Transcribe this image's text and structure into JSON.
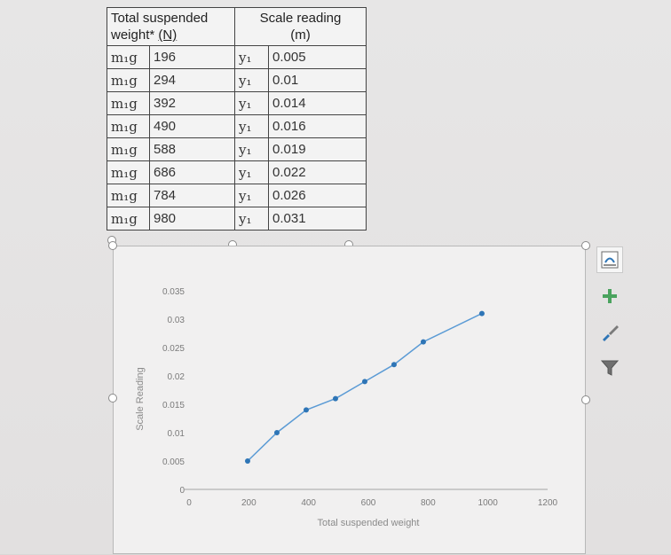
{
  "table": {
    "header_weight_line1": "Total suspended",
    "header_weight_line2": "weight*",
    "header_weight_unit": "(N)",
    "header_scale_line1": "Scale reading",
    "header_scale_unit": "(m)",
    "rows": [
      {
        "sym": "m₁g",
        "weight": "196",
        "ysym": "y₁",
        "reading": "0.005"
      },
      {
        "sym": "m₁g",
        "weight": "294",
        "ysym": "y₁",
        "reading": "0.01"
      },
      {
        "sym": "m₁g",
        "weight": "392",
        "ysym": "y₁",
        "reading": "0.014"
      },
      {
        "sym": "m₁g",
        "weight": "490",
        "ysym": "y₁",
        "reading": "0.016"
      },
      {
        "sym": "m₁g",
        "weight": "588",
        "ysym": "y₁",
        "reading": "0.019"
      },
      {
        "sym": "m₁g",
        "weight": "686",
        "ysym": "y₁",
        "reading": "0.022"
      },
      {
        "sym": "m₁g",
        "weight": "784",
        "ysym": "y₁",
        "reading": "0.026"
      },
      {
        "sym": "m₁g",
        "weight": "980",
        "ysym": "y₁",
        "reading": "0.031"
      }
    ]
  },
  "side_buttons": [
    "layout-options-icon",
    "chart-elements-plus-icon",
    "chart-styles-brush-icon",
    "chart-filters-funnel-icon"
  ],
  "chart_data": {
    "type": "line",
    "title": "",
    "xlabel": "Total suspended weight",
    "ylabel": "Scale Reading",
    "xlim": [
      0,
      1200
    ],
    "ylim": [
      0,
      0.035
    ],
    "x_ticks": [
      "0",
      "200",
      "400",
      "600",
      "800",
      "1000",
      "1200"
    ],
    "y_ticks": [
      "0",
      "0.005",
      "0.01",
      "0.015",
      "0.02",
      "0.025",
      "0.03",
      "0.035"
    ],
    "grid": false,
    "line_color": "#5b9bd5",
    "marker_color": "#2e75b6",
    "series": [
      {
        "x": [
          196,
          294,
          392,
          490,
          588,
          686,
          784,
          980
        ],
        "y": [
          0.005,
          0.01,
          0.014,
          0.016,
          0.019,
          0.022,
          0.026,
          0.031
        ]
      }
    ]
  }
}
